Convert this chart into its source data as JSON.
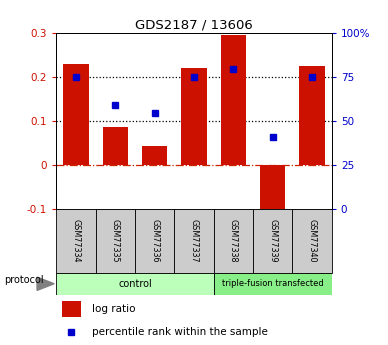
{
  "title": "GDS2187 / 13606",
  "samples": [
    "GSM77334",
    "GSM77335",
    "GSM77336",
    "GSM77337",
    "GSM77338",
    "GSM77339",
    "GSM77340"
  ],
  "log_ratio": [
    0.23,
    0.085,
    0.042,
    0.22,
    0.295,
    -0.105,
    0.225
  ],
  "percentile_rank_left": [
    0.2,
    0.135,
    0.118,
    0.2,
    0.218,
    0.063,
    0.2
  ],
  "ylim_left": [
    -0.1,
    0.3
  ],
  "ylim_right": [
    0,
    100
  ],
  "bar_color": "#cc1100",
  "dot_color": "#0000cc",
  "dotted_line_color": "#000000",
  "zero_line_color": "#cc2200",
  "control_samples_count": 4,
  "transfected_samples_count": 3,
  "control_label": "control",
  "transfected_label": "triple-fusion transfected",
  "protocol_label": "protocol",
  "legend_bar_label": "log ratio",
  "legend_dot_label": "percentile rank within the sample",
  "control_color": "#bbffbb",
  "transfected_color": "#88ee88",
  "sample_box_color": "#cccccc",
  "right_tick_positions": [
    0,
    25,
    50,
    75,
    100
  ],
  "right_tick_labels": [
    "0",
    "25",
    "50",
    "75",
    "100%"
  ],
  "left_tick_positions": [
    -0.1,
    0.0,
    0.1,
    0.2,
    0.3
  ],
  "left_tick_labels": [
    "-0.1",
    "0",
    "0.1",
    "0.2",
    "0.3"
  ],
  "figsize": [
    3.88,
    3.45
  ],
  "dpi": 100
}
